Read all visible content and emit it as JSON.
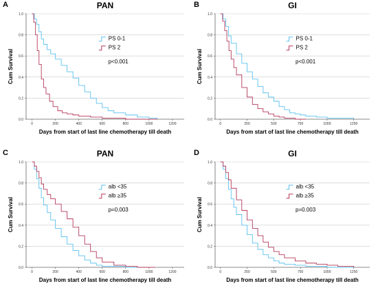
{
  "colors": {
    "blue": "#5bc1ef",
    "red": "#b5395b",
    "grid": "#c9c9c9",
    "axis": "#333333"
  },
  "chart_data": [
    {
      "panel": "A",
      "title": "PAN",
      "type": "line",
      "step": true,
      "xlabel": "Days from start of last line chemotherapy till death",
      "ylabel": "Cum Survival",
      "xlim": [
        -50,
        1300
      ],
      "ylim": [
        0,
        1.0
      ],
      "xticks": [
        0,
        200,
        400,
        600,
        800,
        1000,
        1200
      ],
      "xtick_labels": [
        "0",
        "200",
        "400",
        "600",
        "800",
        "1000",
        "1200"
      ],
      "yticks": [
        0.0,
        0.2,
        0.4,
        0.6,
        0.8,
        1.0
      ],
      "ytick_labels": [
        "0.0",
        "0.2",
        "0.4",
        "0.6",
        "0.8",
        "1.0"
      ],
      "grid": "horizontal",
      "legend_position": "center-right",
      "annotation": "p<0.001",
      "series": [
        {
          "name": "PS 0-1",
          "color": "blue",
          "x": [
            0,
            20,
            40,
            60,
            80,
            100,
            130,
            160,
            200,
            250,
            300,
            350,
            400,
            450,
            500,
            550,
            600,
            650,
            700,
            800,
            900,
            1000,
            1070
          ],
          "y": [
            1.0,
            0.95,
            0.9,
            0.83,
            0.76,
            0.71,
            0.66,
            0.62,
            0.57,
            0.51,
            0.45,
            0.39,
            0.32,
            0.26,
            0.2,
            0.15,
            0.11,
            0.08,
            0.06,
            0.04,
            0.02,
            0.01,
            0.0
          ]
        },
        {
          "name": "PS 2",
          "color": "red",
          "x": [
            0,
            15,
            30,
            45,
            60,
            80,
            100,
            120,
            150,
            180,
            220,
            260,
            300,
            350,
            400,
            500,
            600,
            700,
            800,
            1070
          ],
          "y": [
            1.0,
            0.92,
            0.8,
            0.65,
            0.52,
            0.38,
            0.3,
            0.24,
            0.17,
            0.12,
            0.08,
            0.06,
            0.05,
            0.04,
            0.03,
            0.02,
            0.01,
            0.01,
            0.0,
            0.0
          ]
        }
      ]
    },
    {
      "panel": "B",
      "title": "GI",
      "type": "line",
      "step": true,
      "xlabel": "Days from start of last line chemotherapy till death",
      "ylabel": "Cum Survival",
      "xlim": [
        -50,
        1400
      ],
      "ylim": [
        0,
        1.0
      ],
      "xticks": [
        0,
        250,
        500,
        750,
        1000,
        1250
      ],
      "xtick_labels": [
        "0",
        "250",
        "500",
        "750",
        "1000",
        "1250"
      ],
      "yticks": [
        0.0,
        0.2,
        0.4,
        0.6,
        0.8,
        1.0
      ],
      "ytick_labels": [
        "0.0",
        "0.2",
        "0.4",
        "0.6",
        "0.8",
        "1.0"
      ],
      "grid": "horizontal",
      "legend_position": "center-right",
      "annotation": "p<0.001",
      "series": [
        {
          "name": "PS 0-1",
          "color": "blue",
          "x": [
            0,
            25,
            50,
            75,
            100,
            150,
            200,
            250,
            300,
            350,
            400,
            450,
            500,
            550,
            600,
            650,
            700,
            750,
            800,
            900,
            1000,
            1100,
            1250
          ],
          "y": [
            1.0,
            0.95,
            0.88,
            0.79,
            0.72,
            0.62,
            0.53,
            0.45,
            0.38,
            0.31,
            0.25,
            0.21,
            0.17,
            0.12,
            0.09,
            0.06,
            0.05,
            0.04,
            0.03,
            0.02,
            0.01,
            0.01,
            0.0
          ]
        },
        {
          "name": "PS 2",
          "color": "red",
          "x": [
            0,
            20,
            40,
            60,
            80,
            100,
            125,
            150,
            200,
            250,
            300,
            350,
            400,
            450,
            500,
            550,
            600,
            700,
            800
          ],
          "y": [
            1.0,
            0.93,
            0.84,
            0.74,
            0.65,
            0.57,
            0.49,
            0.42,
            0.3,
            0.21,
            0.14,
            0.1,
            0.07,
            0.05,
            0.03,
            0.02,
            0.01,
            0.0,
            0.0
          ]
        }
      ]
    },
    {
      "panel": "C",
      "title": "PAN",
      "type": "line",
      "step": true,
      "xlabel": "Days from start of last line chemotherapy till death",
      "ylabel": "Cum Survival",
      "xlim": [
        -50,
        1300
      ],
      "ylim": [
        0,
        1.0
      ],
      "xticks": [
        0,
        200,
        400,
        600,
        800,
        1000,
        1200
      ],
      "xtick_labels": [
        "0",
        "200",
        "400",
        "600",
        "800",
        "1000",
        "1200"
      ],
      "yticks": [
        0.0,
        0.2,
        0.4,
        0.6,
        0.8,
        1.0
      ],
      "ytick_labels": [
        "0.0",
        "0.2",
        "0.4",
        "0.6",
        "0.8",
        "1.0"
      ],
      "grid": "horizontal",
      "legend_position": "center-right",
      "annotation": "p=0.003",
      "series": [
        {
          "name": "alb <35",
          "color": "blue",
          "x": [
            0,
            20,
            40,
            60,
            80,
            100,
            130,
            160,
            200,
            250,
            300,
            350,
            400,
            450,
            500,
            550,
            600,
            700,
            800,
            1050
          ],
          "y": [
            1.0,
            0.93,
            0.84,
            0.75,
            0.66,
            0.59,
            0.52,
            0.45,
            0.37,
            0.29,
            0.22,
            0.16,
            0.11,
            0.07,
            0.04,
            0.02,
            0.01,
            0.01,
            0.0,
            0.0
          ]
        },
        {
          "name": "alb ≥35",
          "color": "red",
          "x": [
            0,
            20,
            40,
            60,
            80,
            100,
            130,
            160,
            200,
            250,
            300,
            350,
            400,
            450,
            500,
            550,
            600,
            700,
            800,
            900,
            1050
          ],
          "y": [
            1.0,
            0.96,
            0.91,
            0.85,
            0.79,
            0.74,
            0.69,
            0.65,
            0.6,
            0.53,
            0.46,
            0.38,
            0.3,
            0.22,
            0.15,
            0.09,
            0.05,
            0.02,
            0.01,
            0.0,
            0.0
          ]
        }
      ]
    },
    {
      "panel": "D",
      "title": "GI",
      "type": "line",
      "step": true,
      "xlabel": "Days from start of last line chemotherapy till death",
      "ylabel": "Cum Survival",
      "xlim": [
        -50,
        1400
      ],
      "ylim": [
        0,
        1.0
      ],
      "xticks": [
        0,
        250,
        500,
        750,
        1000,
        1250
      ],
      "xtick_labels": [
        "0",
        "250",
        "500",
        "750",
        "1000",
        "1250"
      ],
      "yticks": [
        0.0,
        0.2,
        0.4,
        0.6,
        0.8,
        1.0
      ],
      "ytick_labels": [
        "0.0",
        "0.2",
        "0.4",
        "0.6",
        "0.8",
        "1.0"
      ],
      "grid": "horizontal",
      "legend_position": "center-right",
      "annotation": "p=0.003",
      "series": [
        {
          "name": "alb <35",
          "color": "blue",
          "x": [
            0,
            25,
            50,
            75,
            100,
            125,
            150,
            200,
            250,
            300,
            350,
            400,
            450,
            500,
            550,
            600,
            700,
            800,
            900,
            1000,
            1250
          ],
          "y": [
            1.0,
            0.93,
            0.84,
            0.74,
            0.65,
            0.57,
            0.5,
            0.4,
            0.31,
            0.23,
            0.17,
            0.12,
            0.09,
            0.06,
            0.04,
            0.03,
            0.02,
            0.01,
            0.01,
            0.0,
            0.0
          ]
        },
        {
          "name": "alb ≥35",
          "color": "red",
          "x": [
            0,
            25,
            50,
            75,
            100,
            150,
            200,
            250,
            300,
            350,
            400,
            450,
            500,
            550,
            600,
            700,
            800,
            900,
            1000,
            1100,
            1250
          ],
          "y": [
            1.0,
            0.96,
            0.9,
            0.83,
            0.75,
            0.64,
            0.54,
            0.45,
            0.37,
            0.3,
            0.24,
            0.19,
            0.15,
            0.12,
            0.09,
            0.06,
            0.04,
            0.03,
            0.02,
            0.01,
            0.0
          ]
        }
      ]
    }
  ]
}
